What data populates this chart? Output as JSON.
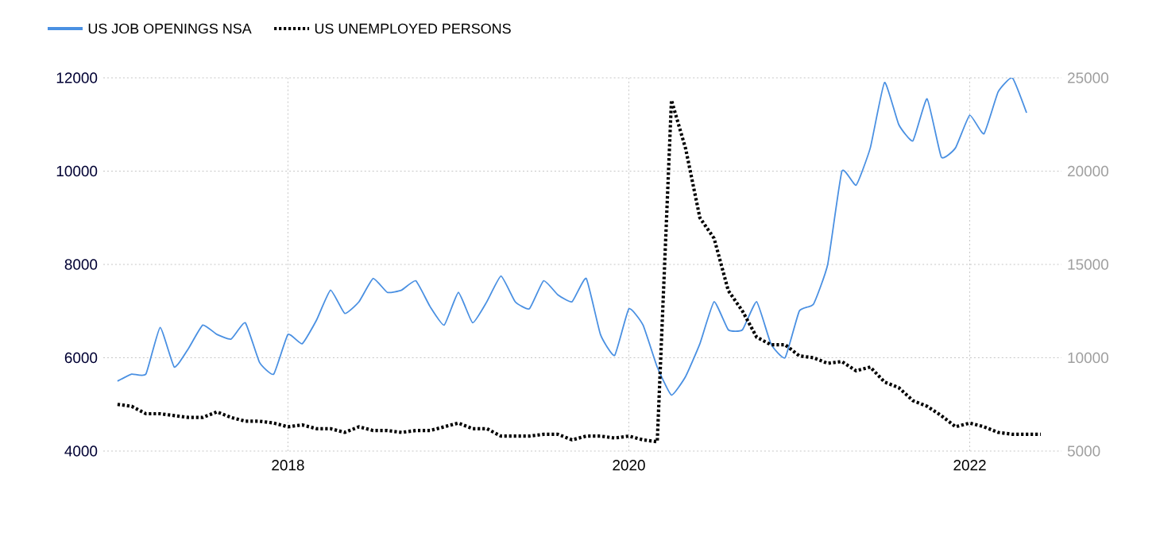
{
  "chart_data": {
    "type": "line",
    "x": [
      "2017-01",
      "2017-02",
      "2017-03",
      "2017-04",
      "2017-05",
      "2017-06",
      "2017-07",
      "2017-08",
      "2017-09",
      "2017-10",
      "2017-11",
      "2017-12",
      "2018-01",
      "2018-02",
      "2018-03",
      "2018-04",
      "2018-05",
      "2018-06",
      "2018-07",
      "2018-08",
      "2018-09",
      "2018-10",
      "2018-11",
      "2018-12",
      "2019-01",
      "2019-02",
      "2019-03",
      "2019-04",
      "2019-05",
      "2019-06",
      "2019-07",
      "2019-08",
      "2019-09",
      "2019-10",
      "2019-11",
      "2019-12",
      "2020-01",
      "2020-02",
      "2020-03",
      "2020-04",
      "2020-05",
      "2020-06",
      "2020-07",
      "2020-08",
      "2020-09",
      "2020-10",
      "2020-11",
      "2020-12",
      "2021-01",
      "2021-02",
      "2021-03",
      "2021-04",
      "2021-05",
      "2021-06",
      "2021-07",
      "2021-08",
      "2021-09",
      "2021-10",
      "2021-11",
      "2021-12",
      "2022-01",
      "2022-02",
      "2022-03",
      "2022-04",
      "2022-05",
      "2022-06"
    ],
    "series": [
      {
        "name": "US JOB OPENINGS NSA",
        "color": "#4a90e2",
        "line_style": "solid",
        "values": [
          5500,
          5650,
          5650,
          6650,
          5800,
          6200,
          6700,
          6500,
          6400,
          6750,
          5900,
          5650,
          6500,
          6300,
          6800,
          7450,
          6950,
          7200,
          7700,
          7400,
          7450,
          7650,
          7100,
          6700,
          7400,
          6750,
          7200,
          7750,
          7200,
          7050,
          7650,
          7350,
          7200,
          7700,
          6500,
          6050,
          7050,
          6700,
          5800,
          5200,
          5600,
          6300,
          7200,
          6600,
          6600,
          7200,
          6300,
          6000,
          7000,
          7150,
          8000,
          10000,
          9700,
          10500,
          11900,
          11000,
          10650,
          11550,
          10300,
          10500,
          11200,
          10800,
          11700,
          12000,
          11250,
          null
        ]
      },
      {
        "name": "US UNEMPLOYED PERSONS",
        "color": "#000000",
        "line_style": "dotted",
        "axis": "y2",
        "values": [
          7500,
          7400,
          7000,
          7000,
          6900,
          6800,
          6800,
          7100,
          6800,
          6600,
          6600,
          6500,
          6300,
          6400,
          6200,
          6200,
          6000,
          6300,
          6100,
          6100,
          6000,
          6100,
          6100,
          6300,
          6500,
          6200,
          6200,
          5800,
          5800,
          5800,
          5900,
          5900,
          5600,
          5800,
          5800,
          5700,
          5800,
          5600,
          5500,
          23800,
          21200,
          17500,
          16400,
          13600,
          12500,
          11100,
          10700,
          10700,
          10100,
          10000,
          9700,
          9800,
          9300,
          9500,
          8700,
          8400,
          7700,
          7400,
          6900,
          6300,
          6500,
          6300,
          6000,
          5900,
          5900,
          5900
        ]
      }
    ],
    "xlim": [
      "2016-12-01",
      "2022-07-15"
    ],
    "xticks": [
      "2018",
      "2020",
      "2022"
    ],
    "ylim": [
      4000,
      12000
    ],
    "yticks": [
      4000,
      6000,
      8000,
      10000,
      12000
    ],
    "y2lim": [
      5000,
      25000
    ],
    "y2ticks": [
      5000,
      10000,
      15000,
      20000,
      25000
    ],
    "grid": true,
    "legend": "top left"
  }
}
